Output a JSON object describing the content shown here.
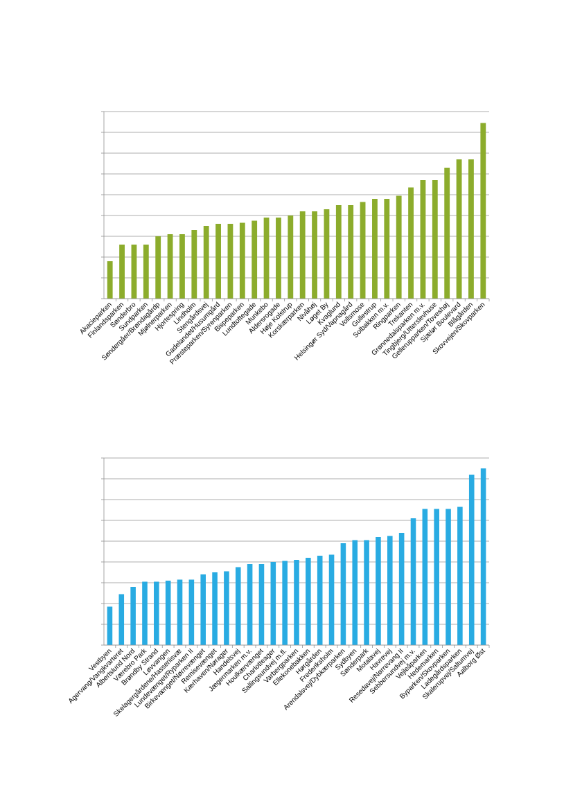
{
  "chart_data": [
    {
      "type": "bar",
      "title": "",
      "xlabel": "",
      "ylabel": "",
      "ylim": [
        0,
        9
      ],
      "grid": true,
      "color": "#8cac2c",
      "categories": [
        "Akacieparken",
        "Finlandsparken",
        "Sønderbro",
        "Sundparken",
        "Søndergåer/Brøndagårdp",
        "Mjølnerparken",
        "Hjortespring",
        "Lindholm",
        "Stengårdsvej",
        "Gadelandet/Husumgård",
        "Præsteparken/Syrenparken",
        "Bispeparken",
        "Lundtoftegade",
        "Munkebo",
        "Aldersrogade",
        "Høje Kolstrup",
        "Korskærparken",
        "Nivåhøj",
        "Løget By",
        "Kvaglund",
        "Helsingør Syd/Vapnagård",
        "Vollsmose",
        "Gullestrup",
        "Solbakken m.v.",
        "Ringparken",
        "Trekanten",
        "Grønnedalsparken m.v.",
        "Tingbjerg/Utterslevhuse",
        "Gellerupparken/Toveshøj",
        "Sjælør Boulevard",
        "Blågården",
        "Skovvejen/Skovparken"
      ],
      "values": [
        1.8,
        2.6,
        2.6,
        2.6,
        3.0,
        3.1,
        3.1,
        3.3,
        3.5,
        3.6,
        3.6,
        3.65,
        3.75,
        3.9,
        3.9,
        4.0,
        4.2,
        4.2,
        4.3,
        4.5,
        4.5,
        4.65,
        4.8,
        4.8,
        4.95,
        5.35,
        5.7,
        5.7,
        6.3,
        6.7,
        6.7,
        8.45
      ]
    },
    {
      "type": "bar",
      "title": "",
      "xlabel": "",
      "ylabel": "",
      "ylim": [
        0,
        9
      ],
      "grid": true,
      "color": "#29abe2",
      "categories": [
        "Vestbyen",
        "Agervang/Vangkvarteret",
        "Albertslund Nord",
        "Værebro Park",
        "Brøndby Strand",
        "Løvvangen",
        "Skelagergårdene/Hasseriisvæ",
        "Lundevænget/Ryparken II",
        "Birkevænget/Nørrevænget",
        "Remisevænget",
        "Kærhaven/Nørager",
        "Handelsvej",
        "Jægermarken m.v.",
        "Houlkærvænget",
        "Charlotteager",
        "Sallingsundvej m.fl.",
        "Varbergparken",
        "Ellekonebakken",
        "Hørgården",
        "Frederiksholm",
        "Arendalsvej/Dybkærparken",
        "Sydbyen",
        "Sønderpark",
        "Motalavej",
        "Havrevej",
        "Resedavej/Nørrevang II",
        "Sebbersundvej m.v.",
        "Vejleåparken",
        "Hedemarken",
        "Byparken/Skovparken",
        "Ladegårdsparken",
        "Skalerupvej/Saltumvej",
        "Aalborg Øst"
      ],
      "values": [
        1.85,
        2.45,
        2.8,
        3.05,
        3.05,
        3.1,
        3.15,
        3.15,
        3.4,
        3.5,
        3.55,
        3.75,
        3.9,
        3.9,
        4.0,
        4.05,
        4.1,
        4.2,
        4.3,
        4.35,
        4.9,
        5.05,
        5.05,
        5.2,
        5.25,
        5.4,
        6.1,
        6.55,
        6.55,
        6.55,
        6.65,
        8.2,
        8.5
      ]
    }
  ]
}
